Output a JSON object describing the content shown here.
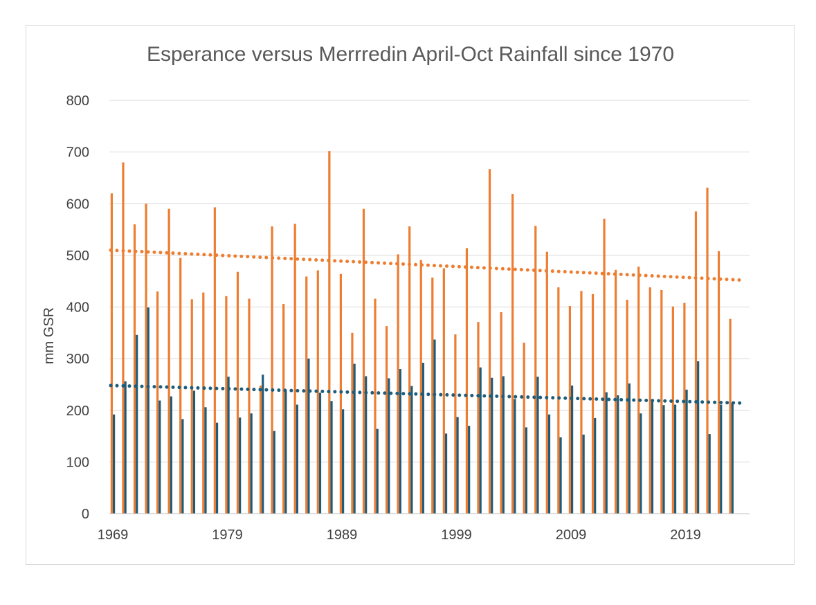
{
  "chart_data": {
    "type": "bar",
    "title": "Esperance versus Merrredin April-Oct Rainfall since 1970",
    "xlabel": "",
    "ylabel": "mm GSR",
    "ylim": [
      0,
      800
    ],
    "yticks": [
      0,
      100,
      200,
      300,
      400,
      500,
      600,
      700,
      800
    ],
    "xticks": [
      1969,
      1979,
      1989,
      1999,
      2009,
      2019
    ],
    "grid": true,
    "legend": "none",
    "x": [
      1969,
      1970,
      1971,
      1972,
      1973,
      1974,
      1975,
      1976,
      1977,
      1978,
      1979,
      1980,
      1981,
      1982,
      1983,
      1984,
      1985,
      1986,
      1987,
      1988,
      1989,
      1990,
      1991,
      1992,
      1993,
      1994,
      1995,
      1996,
      1997,
      1998,
      1999,
      2000,
      2001,
      2002,
      2003,
      2004,
      2005,
      2006,
      2007,
      2008,
      2009,
      2010,
      2011,
      2012,
      2013,
      2014,
      2015,
      2016,
      2017,
      2018,
      2019,
      2020,
      2021,
      2022,
      2023
    ],
    "series": [
      {
        "color": "#ed7d31",
        "values": [
          620,
          680,
          560,
          600,
          430,
          590,
          495,
          415,
          428,
          593,
          421,
          468,
          416,
          248,
          556,
          406,
          561,
          459,
          471,
          702,
          464,
          350,
          590,
          416,
          363,
          502,
          556,
          491,
          457,
          475,
          347,
          514,
          371,
          667,
          390,
          619,
          331,
          557,
          507,
          438,
          402,
          431,
          425,
          571,
          472,
          414,
          478,
          438,
          433,
          401,
          408,
          585,
          631,
          508,
          377
        ],
        "trendline": {
          "style": "dotted",
          "start": 510,
          "end": 452
        }
      },
      {
        "color": "#1f5c7a",
        "values": [
          192,
          256,
          346,
          399,
          219,
          227,
          183,
          238,
          206,
          176,
          265,
          186,
          194,
          269,
          160,
          238,
          211,
          300,
          234,
          218,
          202,
          290,
          266,
          164,
          262,
          280,
          247,
          292,
          337,
          155,
          187,
          170,
          283,
          263,
          266,
          222,
          167,
          265,
          192,
          148,
          248,
          153,
          185,
          235,
          229,
          252,
          194,
          216,
          210,
          211,
          240,
          295,
          154,
          211,
          215
        ],
        "trendline": {
          "style": "dotted",
          "start": 248,
          "end": 214
        }
      }
    ]
  }
}
